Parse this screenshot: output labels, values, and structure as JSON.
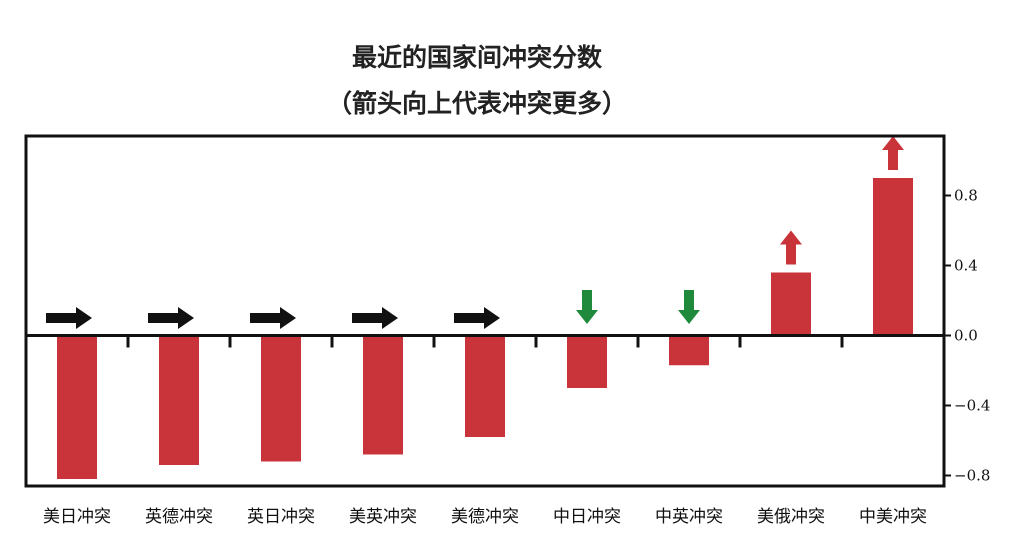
{
  "chart_data": {
    "type": "bar",
    "title": "最近的国家间冲突分数",
    "subtitle": "（箭头向上代表冲突更多）",
    "categories": [
      "美日冲突",
      "英德冲突",
      "英日冲突",
      "美英冲突",
      "美德冲突",
      "中日冲突",
      "中英冲突",
      "美俄冲突",
      "中美冲突"
    ],
    "values": [
      -0.82,
      -0.74,
      -0.72,
      -0.68,
      -0.58,
      -0.3,
      -0.17,
      0.36,
      0.9
    ],
    "trend_arrows": [
      "right",
      "right",
      "right",
      "right",
      "right",
      "down",
      "down",
      "up",
      "up"
    ],
    "y_ticks": [
      0.8,
      0.4,
      0.0,
      -0.4,
      -0.8
    ],
    "y_tick_labels": [
      "0.8",
      "0.4",
      "0.0",
      "−0.4",
      "−0.8"
    ],
    "ylim": [
      -0.86,
      1.14
    ],
    "y_axis_side": "right",
    "grid": false,
    "colors": {
      "bar": "#c8343a",
      "arrow_right": "#111111",
      "arrow_down": "#1f8a3c",
      "arrow_up": "#c8343a",
      "frame": "#111111"
    }
  }
}
